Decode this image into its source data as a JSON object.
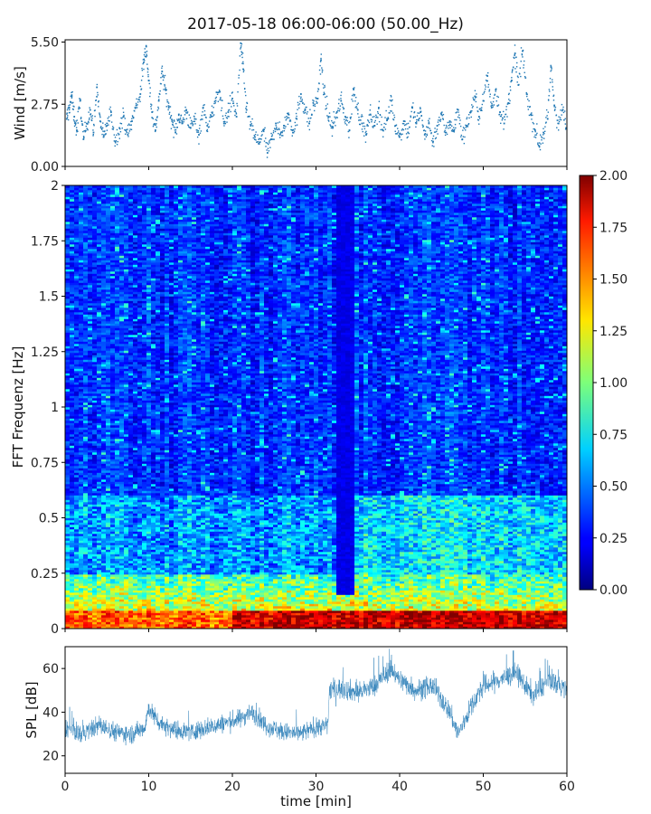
{
  "title": "2017-05-18 06:00-06:00 (50.00_Hz)",
  "chart_data": [
    {
      "type": "scatter",
      "name": "wind",
      "ylabel": "Wind [m/s]",
      "xlim": [
        0,
        60
      ],
      "ylim": [
        0,
        5.6
      ],
      "yticks": [
        "0.00",
        "2.75",
        "5.50"
      ],
      "ytick_values": [
        0,
        2.75,
        5.5
      ],
      "marker_color": "#1f77b4",
      "summary": {
        "typical_min": 0.8,
        "typical_max": 2.8,
        "peak": 5.45
      },
      "points": [
        [
          0.2,
          2.1
        ],
        [
          0.5,
          2.6
        ],
        [
          0.8,
          3.1
        ],
        [
          1.1,
          2.2
        ],
        [
          1.4,
          1.6
        ],
        [
          1.8,
          2.9
        ],
        [
          2.2,
          1.2
        ],
        [
          2.6,
          1.9
        ],
        [
          3.0,
          2.5
        ],
        [
          3.4,
          1.5
        ],
        [
          3.8,
          3.5
        ],
        [
          4.2,
          2.0
        ],
        [
          4.6,
          1.3
        ],
        [
          5.0,
          1.8
        ],
        [
          5.5,
          2.4
        ],
        [
          6.0,
          1.1
        ],
        [
          6.5,
          1.7
        ],
        [
          7.0,
          2.2
        ],
        [
          7.5,
          1.4
        ],
        [
          8.0,
          2.0
        ],
        [
          8.5,
          2.7
        ],
        [
          9.0,
          3.2
        ],
        [
          9.4,
          4.6
        ],
        [
          9.7,
          5.3
        ],
        [
          10.0,
          3.8
        ],
        [
          10.4,
          2.4
        ],
        [
          10.8,
          1.6
        ],
        [
          11.2,
          2.9
        ],
        [
          11.6,
          4.2
        ],
        [
          12.0,
          3.4
        ],
        [
          12.4,
          2.6
        ],
        [
          12.8,
          2.0
        ],
        [
          13.2,
          1.5
        ],
        [
          13.6,
          2.3
        ],
        [
          14.0,
          1.9
        ],
        [
          14.5,
          2.5
        ],
        [
          15.0,
          1.7
        ],
        [
          15.5,
          2.1
        ],
        [
          16.0,
          1.4
        ],
        [
          16.5,
          2.6
        ],
        [
          17.0,
          1.8
        ],
        [
          17.5,
          2.2
        ],
        [
          18.0,
          2.9
        ],
        [
          18.5,
          3.3
        ],
        [
          19.0,
          1.9
        ],
        [
          19.5,
          2.4
        ],
        [
          20.0,
          3.0
        ],
        [
          20.5,
          2.2
        ],
        [
          21.0,
          5.45
        ],
        [
          21.3,
          4.3
        ],
        [
          21.7,
          2.5
        ],
        [
          22.2,
          1.8
        ],
        [
          22.7,
          1.3
        ],
        [
          23.2,
          1.0
        ],
        [
          23.7,
          1.6
        ],
        [
          24.2,
          0.6
        ],
        [
          24.7,
          1.2
        ],
        [
          25.2,
          1.9
        ],
        [
          25.7,
          1.4
        ],
        [
          26.2,
          1.8
        ],
        [
          26.7,
          2.3
        ],
        [
          27.2,
          1.6
        ],
        [
          27.7,
          2.1
        ],
        [
          28.2,
          3.2
        ],
        [
          28.7,
          2.5
        ],
        [
          29.2,
          1.9
        ],
        [
          29.7,
          2.7
        ],
        [
          30.2,
          3.0
        ],
        [
          30.6,
          4.7
        ],
        [
          31.0,
          3.2
        ],
        [
          31.5,
          2.2
        ],
        [
          32.0,
          1.7
        ],
        [
          32.5,
          2.4
        ],
        [
          33.0,
          2.9
        ],
        [
          33.5,
          2.2
        ],
        [
          34.0,
          1.6
        ],
        [
          34.5,
          3.4
        ],
        [
          35.0,
          2.5
        ],
        [
          35.5,
          1.9
        ],
        [
          36.0,
          1.4
        ],
        [
          36.5,
          2.3
        ],
        [
          37.0,
          1.8
        ],
        [
          37.5,
          2.6
        ],
        [
          38.0,
          1.6
        ],
        [
          38.5,
          2.1
        ],
        [
          39.0,
          2.9
        ],
        [
          39.5,
          1.8
        ],
        [
          40.0,
          1.3
        ],
        [
          40.5,
          2.0
        ],
        [
          41.0,
          1.5
        ],
        [
          41.5,
          2.6
        ],
        [
          42.0,
          1.9
        ],
        [
          42.5,
          2.4
        ],
        [
          43.0,
          1.4
        ],
        [
          43.5,
          1.9
        ],
        [
          44.0,
          1.1
        ],
        [
          44.5,
          1.8
        ],
        [
          45.0,
          2.3
        ],
        [
          45.5,
          1.5
        ],
        [
          46.0,
          2.0
        ],
        [
          46.5,
          1.6
        ],
        [
          47.0,
          2.5
        ],
        [
          47.5,
          1.2
        ],
        [
          48.0,
          1.8
        ],
        [
          48.5,
          2.4
        ],
        [
          49.0,
          3.1
        ],
        [
          49.5,
          2.2
        ],
        [
          50.0,
          2.9
        ],
        [
          50.5,
          4.0
        ],
        [
          51.0,
          2.6
        ],
        [
          51.5,
          3.4
        ],
        [
          52.0,
          2.4
        ],
        [
          52.5,
          1.9
        ],
        [
          53.0,
          2.8
        ],
        [
          53.4,
          3.8
        ],
        [
          53.8,
          5.0
        ],
        [
          54.2,
          3.6
        ],
        [
          54.7,
          5.1
        ],
        [
          55.2,
          3.2
        ],
        [
          55.7,
          2.3
        ],
        [
          56.2,
          1.6
        ],
        [
          56.7,
          0.9
        ],
        [
          57.2,
          1.5
        ],
        [
          57.7,
          2.1
        ],
        [
          58.1,
          4.4
        ],
        [
          58.5,
          2.7
        ],
        [
          59.0,
          1.9
        ],
        [
          59.5,
          2.5
        ],
        [
          59.9,
          1.7
        ]
      ]
    },
    {
      "type": "heatmap",
      "name": "spectrogram",
      "ylabel": "FFT Frequenz [Hz]",
      "xlim": [
        0,
        60
      ],
      "ylim": [
        0,
        2
      ],
      "yticks": [
        "0",
        "0.25",
        "0.5",
        "0.75",
        "1",
        "1.25",
        "1.5",
        "1.75",
        "2"
      ],
      "ytick_values": [
        0,
        0.25,
        0.5,
        0.75,
        1,
        1.25,
        1.5,
        1.75,
        2
      ],
      "colorbar": {
        "colormap": "jet",
        "range": [
          0,
          2
        ],
        "ticks": [
          "0.00",
          "0.25",
          "0.50",
          "0.75",
          "1.00",
          "1.25",
          "1.50",
          "1.75",
          "2.00"
        ],
        "tick_values": [
          0,
          0.25,
          0.5,
          0.75,
          1,
          1.25,
          1.5,
          1.75,
          2
        ]
      },
      "features": {
        "low_freq_band_hz": [
          0,
          0.08
        ],
        "low_freq_value": 1.9,
        "dark_column_min": [
          32.5,
          34.5
        ],
        "background_value": 0.3
      }
    },
    {
      "type": "line",
      "name": "spl",
      "ylabel": "SPL [dB]",
      "xlabel": "time [min]",
      "xlim": [
        0,
        60
      ],
      "ylim": [
        12,
        70
      ],
      "yticks": [
        "20",
        "40",
        "60"
      ],
      "ytick_values": [
        20,
        40,
        60
      ],
      "xticks": [
        "0",
        "10",
        "20",
        "30",
        "40",
        "50",
        "60"
      ],
      "xtick_values": [
        0,
        10,
        20,
        30,
        40,
        50,
        60
      ],
      "line_color": "#1f77b4",
      "segments": [
        {
          "x_range": [
            0,
            31.5
          ],
          "mean_db": 32,
          "spread_db": 8
        },
        {
          "x_range": [
            31.5,
            60
          ],
          "mean_db": 50,
          "spread_db": 9
        }
      ],
      "points": [
        [
          0,
          33
        ],
        [
          2,
          30
        ],
        [
          4,
          34
        ],
        [
          6,
          31
        ],
        [
          8,
          30
        ],
        [
          9.5,
          33
        ],
        [
          10,
          42
        ],
        [
          11,
          36
        ],
        [
          13,
          32
        ],
        [
          15,
          31
        ],
        [
          17,
          33
        ],
        [
          19,
          35
        ],
        [
          21,
          37
        ],
        [
          22,
          40
        ],
        [
          23,
          38
        ],
        [
          24,
          34
        ],
        [
          26,
          31
        ],
        [
          28,
          30
        ],
        [
          30,
          33
        ],
        [
          31.4,
          34
        ],
        [
          31.6,
          50
        ],
        [
          33,
          51
        ],
        [
          35,
          49
        ],
        [
          37,
          52
        ],
        [
          38,
          56
        ],
        [
          39,
          60
        ],
        [
          40,
          55
        ],
        [
          42,
          50
        ],
        [
          44,
          52
        ],
        [
          45,
          46
        ],
        [
          46,
          40
        ],
        [
          47,
          30
        ],
        [
          48,
          38
        ],
        [
          49,
          46
        ],
        [
          50,
          52
        ],
        [
          52,
          55
        ],
        [
          54,
          58
        ],
        [
          55,
          52
        ],
        [
          56,
          48
        ],
        [
          58,
          55
        ],
        [
          60,
          50
        ]
      ]
    }
  ]
}
